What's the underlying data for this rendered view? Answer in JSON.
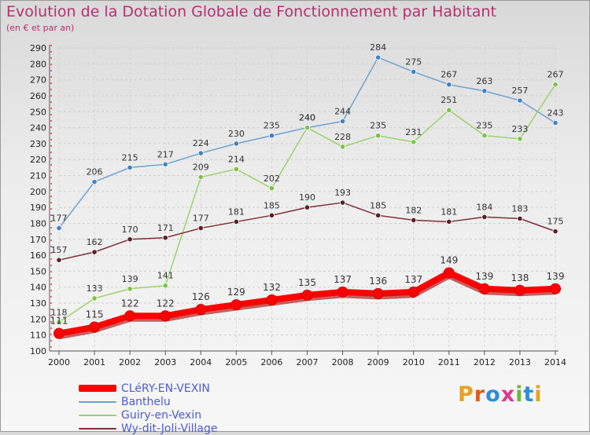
{
  "title": "Evolution de la Dotation Globale de Fonctionnement par Habitant",
  "subtitle": "(en € et par an)",
  "logo": {
    "text": "Proxiti",
    "letter_colors": [
      "#e8a020",
      "#e05a1e",
      "#2a8fd4",
      "#d93b8a",
      "#6bb83a",
      "#2a8fd4",
      "#e8a020"
    ]
  },
  "chart_data": {
    "type": "line",
    "x": [
      2000,
      2001,
      2002,
      2003,
      2004,
      2005,
      2006,
      2007,
      2008,
      2009,
      2010,
      2011,
      2012,
      2013,
      2014
    ],
    "ylim": [
      100,
      290
    ],
    "yticks": [
      100,
      110,
      120,
      130,
      140,
      150,
      160,
      170,
      180,
      190,
      200,
      210,
      220,
      230,
      240,
      250,
      260,
      270,
      280,
      290
    ],
    "grid": true,
    "legend_position": "bottom-left",
    "series": [
      {
        "name": "Banthelu",
        "color": "#6fa3cf",
        "marker_color": "#3f82c7",
        "values": [
          177,
          206,
          215,
          217,
          224,
          230,
          235,
          240,
          244,
          284,
          275,
          267,
          263,
          257,
          243
        ]
      },
      {
        "name": "Guiry-en-Vexin",
        "color": "#9ad36a",
        "marker_color": "#7ac443",
        "values": [
          118,
          133,
          139,
          141,
          209,
          214,
          202,
          240,
          228,
          235,
          231,
          251,
          235,
          233,
          267
        ]
      },
      {
        "name": "Wy-dit-Joli-Village",
        "color": "#7a3036",
        "marker_color": "#5c1f25",
        "values": [
          157,
          162,
          170,
          171,
          177,
          181,
          185,
          190,
          193,
          185,
          182,
          181,
          184,
          183,
          175
        ]
      },
      {
        "name": "CLéRY-EN-VEXIN",
        "color": "#ff0000",
        "marker_color": "#ff0000",
        "values": [
          111,
          115,
          122,
          122,
          126,
          129,
          132,
          135,
          137,
          136,
          137,
          149,
          139,
          138,
          139
        ]
      }
    ],
    "legend_order": [
      "CLéRY-EN-VEXIN",
      "Banthelu",
      "Guiry-en-Vexin",
      "Wy-dit-Joli-Village"
    ]
  }
}
